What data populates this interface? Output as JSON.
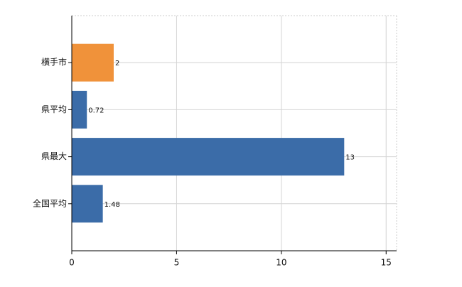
{
  "chart_data": {
    "type": "hbar",
    "categories": [
      "横手市",
      "県平均",
      "県最大",
      "全国平均"
    ],
    "values": [
      2,
      0.72,
      13,
      1.48
    ],
    "colors": [
      "#f0923a",
      "#3b6ca8",
      "#3b6ca8",
      "#3b6ca8"
    ],
    "xlim": [
      0,
      15.5
    ],
    "xticks": [
      0,
      5,
      10,
      15
    ],
    "grid": true
  }
}
